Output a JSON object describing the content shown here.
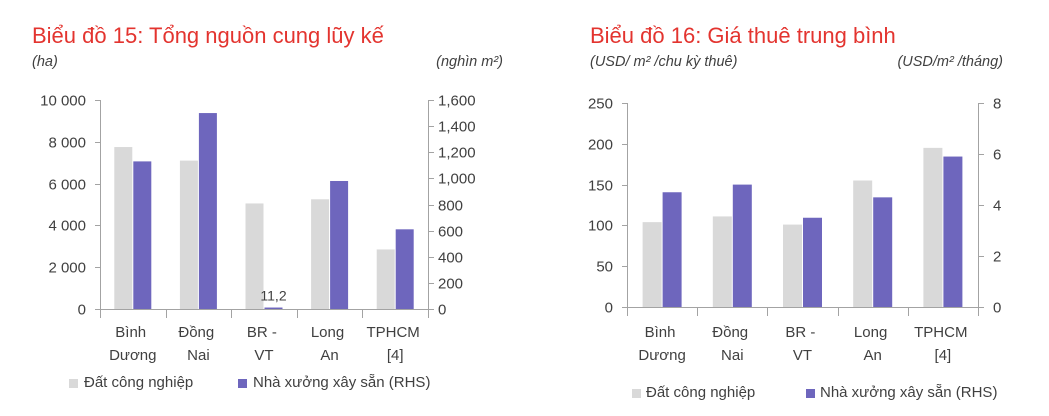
{
  "colors": {
    "title": "#e3342f",
    "axis": "#a3a3a3",
    "text": "#404040"
  },
  "chart_data": [
    {
      "type": "bar",
      "title": "Biểu đồ 15: Tổng nguồn cung lũy kế",
      "ylabel": "(ha)",
      "y2label": "(nghìn m²)",
      "categories": [
        "Bình Dương",
        "Đồng Nai",
        "BR - VT",
        "Long An",
        "TPHCM [4]"
      ],
      "series": [
        {
          "name": "Đất công nghiệp",
          "axis": "left",
          "color": "#d9d9d9",
          "values": [
            7750,
            7100,
            5050,
            5250,
            2850
          ]
        },
        {
          "name": "Nhà xưởng xây sẵn (RHS)",
          "axis": "right",
          "color": "#6e66bd",
          "values": [
            1130,
            1500,
            11.2,
            980,
            610
          ]
        }
      ],
      "ylim": [
        0,
        10000
      ],
      "y2lim": [
        0,
        1600
      ],
      "y_ticks": [
        "0",
        "2 000",
        "4 000",
        "6 000",
        "8 000",
        "10 000"
      ],
      "y2_ticks": [
        "0",
        "200",
        "400",
        "600",
        "800",
        "1,000",
        "1,200",
        "1,400",
        "1,600"
      ],
      "data_labels": [
        {
          "series": 1,
          "index": 2,
          "text": "11,2"
        }
      ],
      "grid": false,
      "legend": "bottom"
    },
    {
      "type": "bar",
      "title": "Biểu đồ 16: Giá thuê trung bình",
      "ylabel": "(USD/ m² /chu kỳ thuê)",
      "y2label": "(USD/m² /tháng)",
      "categories": [
        "Bình Dương",
        "Đồng Nai",
        "BR - VT",
        "Long An",
        "TPHCM [4]"
      ],
      "series": [
        {
          "name": "Đất công nghiệp",
          "axis": "left",
          "color": "#d9d9d9",
          "values": [
            104,
            111,
            101,
            155,
            195
          ]
        },
        {
          "name": "Nhà xưởng xây sẵn (RHS)",
          "axis": "right",
          "color": "#6e66bd",
          "values": [
            4.5,
            4.8,
            3.5,
            4.3,
            5.9
          ]
        }
      ],
      "ylim": [
        0,
        250
      ],
      "y2lim": [
        0,
        8
      ],
      "y_ticks": [
        "0",
        "50",
        "100",
        "150",
        "200",
        "250"
      ],
      "y2_ticks": [
        "0",
        "2",
        "4",
        "6",
        "8"
      ],
      "grid": false,
      "legend": "bottom"
    }
  ]
}
